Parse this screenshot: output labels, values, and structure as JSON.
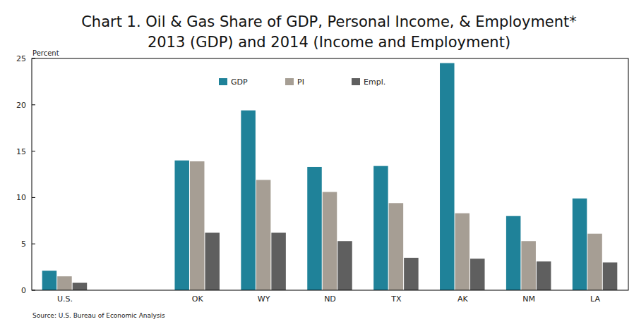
{
  "chart_data": {
    "type": "bar",
    "title": "Chart 1. Oil & Gas Share of GDP, Personal Income, & Employment*",
    "subtitle": "2013 (GDP) and 2014 (Income and Employment)",
    "y_label": "Percent",
    "source": "Source: U.S. Bureau of Economic Analysis",
    "categories": [
      "U.S.",
      null,
      "OK",
      "WY",
      "ND",
      "TX",
      "AK",
      "NM",
      "LA"
    ],
    "series": [
      {
        "name": "GDP",
        "color": "#1f8299",
        "values": [
          2.1,
          null,
          14.0,
          19.4,
          13.3,
          13.4,
          24.5,
          8.0,
          9.9
        ]
      },
      {
        "name": "PI",
        "color": "#a69e94",
        "values": [
          1.5,
          null,
          13.9,
          11.9,
          10.6,
          9.4,
          8.3,
          5.3,
          6.1
        ]
      },
      {
        "name": "Empl.",
        "color": "#5f5f5f",
        "values": [
          0.8,
          null,
          6.2,
          6.2,
          5.3,
          3.5,
          3.4,
          3.1,
          3.0
        ]
      }
    ],
    "ylim": [
      0,
      25
    ],
    "yticks": [
      0,
      5,
      10,
      15,
      20,
      25
    ],
    "grid": false,
    "legend": "top"
  }
}
